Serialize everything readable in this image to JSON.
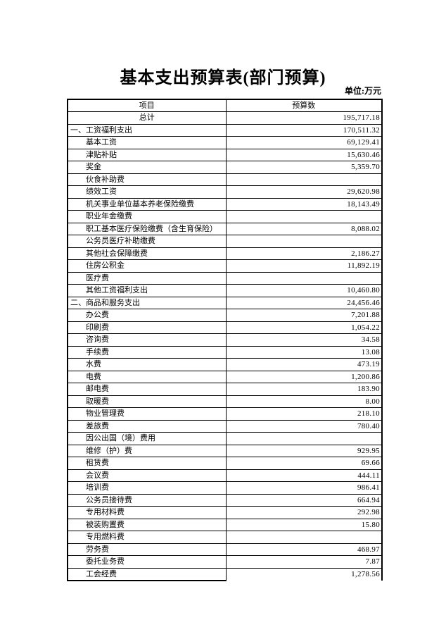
{
  "page": {
    "title": "基本支出预算表(部门预算)",
    "unit_label": "单位:万元"
  },
  "table": {
    "columns": [
      "项目",
      "预算数"
    ],
    "rows": [
      {
        "label": "总计",
        "value": "195,717.18",
        "level": "total"
      },
      {
        "label": "一、工资福利支出",
        "value": "170,511.32",
        "level": "section"
      },
      {
        "label": "基本工资",
        "value": "69,129.41",
        "level": "item"
      },
      {
        "label": "津贴补贴",
        "value": "15,630.46",
        "level": "item"
      },
      {
        "label": "奖金",
        "value": "5,359.70",
        "level": "item"
      },
      {
        "label": "伙食补助费",
        "value": "",
        "level": "item"
      },
      {
        "label": "绩效工资",
        "value": "29,620.98",
        "level": "item"
      },
      {
        "label": "机关事业单位基本养老保险缴费",
        "value": "18,143.49",
        "level": "item"
      },
      {
        "label": "职业年金缴费",
        "value": "",
        "level": "item"
      },
      {
        "label": "职工基本医疗保险缴费（含生育保险）",
        "value": "8,088.02",
        "level": "item"
      },
      {
        "label": "公务员医疗补助缴费",
        "value": "",
        "level": "item"
      },
      {
        "label": "其他社会保障缴费",
        "value": "2,186.27",
        "level": "item"
      },
      {
        "label": "住房公积金",
        "value": "11,892.19",
        "level": "item"
      },
      {
        "label": "医疗费",
        "value": "",
        "level": "item"
      },
      {
        "label": "其他工资福利支出",
        "value": "10,460.80",
        "level": "item"
      },
      {
        "label": "二、商品和服务支出",
        "value": "24,456.46",
        "level": "section"
      },
      {
        "label": "办公费",
        "value": "7,201.88",
        "level": "item"
      },
      {
        "label": "印刷费",
        "value": "1,054.22",
        "level": "item"
      },
      {
        "label": "咨询费",
        "value": "34.58",
        "level": "item"
      },
      {
        "label": "手续费",
        "value": "13.08",
        "level": "item"
      },
      {
        "label": "水费",
        "value": "473.19",
        "level": "item"
      },
      {
        "label": "电费",
        "value": "1,200.86",
        "level": "item"
      },
      {
        "label": "邮电费",
        "value": "183.90",
        "level": "item"
      },
      {
        "label": "取暖费",
        "value": "8.00",
        "level": "item"
      },
      {
        "label": "物业管理费",
        "value": "218.10",
        "level": "item"
      },
      {
        "label": "差旅费",
        "value": "780.40",
        "level": "item"
      },
      {
        "label": "因公出国（境）费用",
        "value": "",
        "level": "item"
      },
      {
        "label": "维修（护）费",
        "value": "929.95",
        "level": "item"
      },
      {
        "label": "租赁费",
        "value": "69.66",
        "level": "item"
      },
      {
        "label": "会议费",
        "value": "444.11",
        "level": "item"
      },
      {
        "label": "培训费",
        "value": "986.41",
        "level": "item"
      },
      {
        "label": "公务员接待费",
        "value": "664.94",
        "level": "item"
      },
      {
        "label": "专用材料费",
        "value": "292.98",
        "level": "item"
      },
      {
        "label": "被装购置费",
        "value": "15.80",
        "level": "item"
      },
      {
        "label": "专用燃料费",
        "value": "",
        "level": "item"
      },
      {
        "label": "劳务费",
        "value": "468.97",
        "level": "item"
      },
      {
        "label": "委托业务费",
        "value": "7.87",
        "level": "item"
      },
      {
        "label": "工会经费",
        "value": "1,278.56",
        "level": "item"
      }
    ]
  }
}
